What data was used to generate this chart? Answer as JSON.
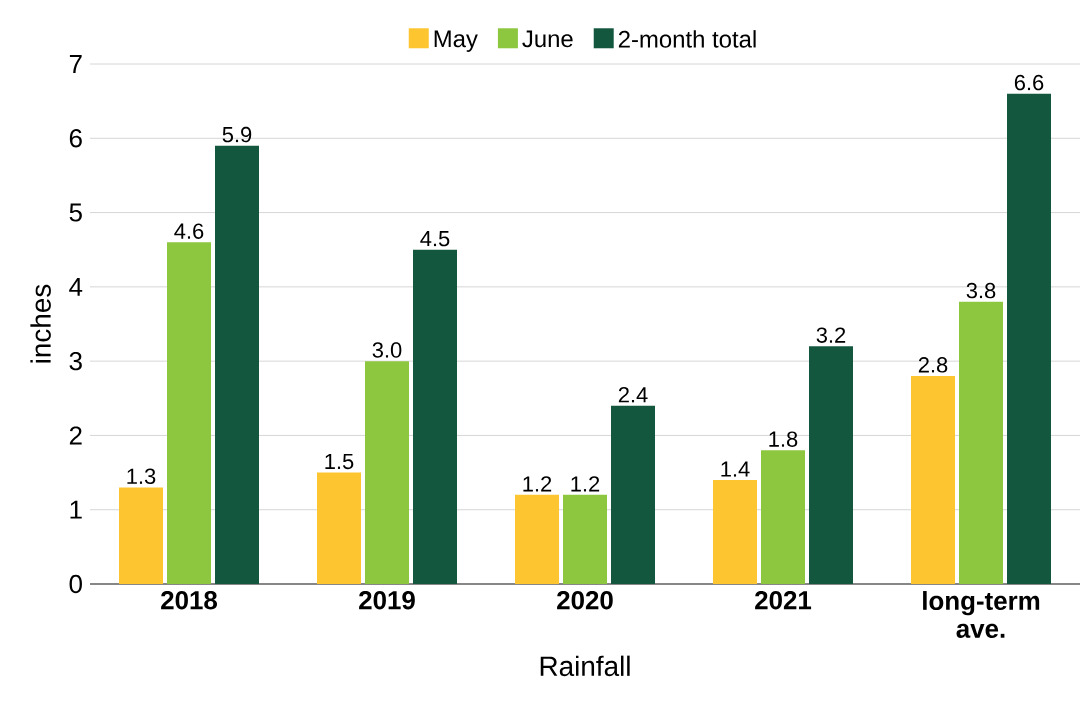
{
  "chart_data": {
    "type": "bar",
    "xlabel": "Rainfall",
    "ylabel": "inches",
    "categories": [
      "2018",
      "2019",
      "2020",
      "2021",
      "long-term ave."
    ],
    "series": [
      {
        "name": "May",
        "color": "#fdc530",
        "values": [
          1.3,
          1.5,
          1.2,
          1.4,
          2.8
        ],
        "value_labels": [
          "1.3",
          "1.5",
          "1.2",
          "1.4",
          "2.8"
        ]
      },
      {
        "name": "June",
        "color": "#8dc63f",
        "values": [
          4.6,
          3.0,
          1.2,
          1.8,
          3.8
        ],
        "value_labels": [
          "4.6",
          "3.0",
          "1.2",
          "1.8",
          "3.8"
        ]
      },
      {
        "name": "2-month total",
        "color": "#14573f",
        "values": [
          5.9,
          4.5,
          2.4,
          3.2,
          6.6
        ],
        "value_labels": [
          "5.9",
          "4.5",
          "2.4",
          "3.2",
          "6.6"
        ]
      }
    ],
    "ylim": [
      0,
      7
    ],
    "yticks": [
      0,
      1,
      2,
      3,
      4,
      5,
      6,
      7
    ],
    "grid": "y",
    "legend": "top"
  }
}
